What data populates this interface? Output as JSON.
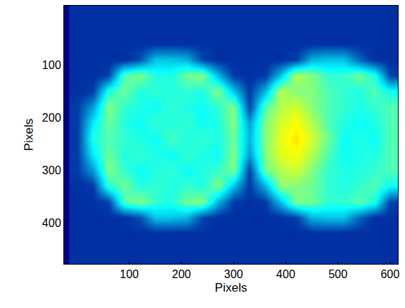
{
  "chart_data": {
    "type": "heatmap",
    "x_label": "Pixels",
    "y_label": "Pixels",
    "xlim": [
      -25,
      615
    ],
    "ylim": [
      478,
      -12
    ],
    "xticks": [
      100,
      200,
      300,
      400,
      500,
      600
    ],
    "yticks": [
      100,
      200,
      300,
      400
    ],
    "zlim": [
      0,
      1
    ],
    "x": [
      0,
      30,
      60,
      90,
      120,
      150,
      180,
      210,
      240,
      270,
      300,
      330,
      360,
      390,
      420,
      450,
      480,
      510,
      540,
      570,
      600
    ],
    "y": [
      0,
      30,
      60,
      90,
      120,
      150,
      180,
      210,
      240,
      270,
      300,
      330,
      360,
      390,
      420,
      450,
      480
    ],
    "cells": [
      [
        0.1,
        0.1,
        0.1,
        0.1,
        0.1,
        0.1,
        0.1,
        0.1,
        0.1,
        0.1,
        0.1,
        0.1,
        0.1,
        0.1,
        0.1,
        0.1,
        0.1,
        0.1,
        0.1,
        0.1,
        0.1
      ],
      [
        0.1,
        0.1,
        0.1,
        0.1,
        0.1,
        0.1,
        0.1,
        0.1,
        0.1,
        0.1,
        0.1,
        0.1,
        0.1,
        0.1,
        0.1,
        0.1,
        0.1,
        0.1,
        0.1,
        0.1,
        0.1
      ],
      [
        0.1,
        0.1,
        0.1,
        0.1,
        0.1,
        0.1,
        0.1,
        0.1,
        0.1,
        0.1,
        0.1,
        0.1,
        0.1,
        0.1,
        0.1,
        0.1,
        0.1,
        0.1,
        0.1,
        0.1,
        0.1
      ],
      [
        0.1,
        0.1,
        0.1,
        0.1,
        0.15,
        0.3,
        0.3,
        0.28,
        0.14,
        0.1,
        0.1,
        0.1,
        0.1,
        0.1,
        0.13,
        0.28,
        0.3,
        0.3,
        0.18,
        0.1,
        0.1
      ],
      [
        0.1,
        0.1,
        0.13,
        0.45,
        0.5,
        0.4,
        0.4,
        0.48,
        0.5,
        0.28,
        0.12,
        0.1,
        0.12,
        0.3,
        0.55,
        0.5,
        0.42,
        0.42,
        0.48,
        0.4,
        0.13
      ],
      [
        0.1,
        0.12,
        0.4,
        0.48,
        0.4,
        0.42,
        0.4,
        0.42,
        0.4,
        0.5,
        0.3,
        0.12,
        0.28,
        0.55,
        0.5,
        0.5,
        0.45,
        0.42,
        0.4,
        0.45,
        0.38
      ],
      [
        0.12,
        0.25,
        0.5,
        0.42,
        0.4,
        0.38,
        0.42,
        0.4,
        0.38,
        0.42,
        0.5,
        0.13,
        0.45,
        0.55,
        0.58,
        0.5,
        0.45,
        0.42,
        0.4,
        0.42,
        0.45
      ],
      [
        0.12,
        0.35,
        0.48,
        0.4,
        0.38,
        0.42,
        0.4,
        0.42,
        0.38,
        0.4,
        0.5,
        0.25,
        0.5,
        0.58,
        0.62,
        0.55,
        0.45,
        0.4,
        0.38,
        0.4,
        0.45
      ],
      [
        0.12,
        0.4,
        0.45,
        0.42,
        0.4,
        0.38,
        0.44,
        0.4,
        0.42,
        0.4,
        0.48,
        0.28,
        0.5,
        0.6,
        0.65,
        0.58,
        0.48,
        0.38,
        0.4,
        0.38,
        0.45
      ],
      [
        0.12,
        0.35,
        0.48,
        0.4,
        0.42,
        0.4,
        0.38,
        0.42,
        0.4,
        0.38,
        0.5,
        0.25,
        0.5,
        0.6,
        0.62,
        0.55,
        0.45,
        0.38,
        0.4,
        0.4,
        0.45
      ],
      [
        0.12,
        0.25,
        0.5,
        0.42,
        0.38,
        0.4,
        0.42,
        0.38,
        0.4,
        0.42,
        0.5,
        0.13,
        0.48,
        0.55,
        0.58,
        0.5,
        0.42,
        0.4,
        0.4,
        0.42,
        0.45
      ],
      [
        0.1,
        0.12,
        0.42,
        0.48,
        0.4,
        0.42,
        0.4,
        0.42,
        0.4,
        0.5,
        0.3,
        0.12,
        0.28,
        0.52,
        0.5,
        0.48,
        0.42,
        0.4,
        0.42,
        0.45,
        0.38
      ],
      [
        0.1,
        0.1,
        0.13,
        0.45,
        0.5,
        0.42,
        0.4,
        0.48,
        0.5,
        0.28,
        0.12,
        0.1,
        0.12,
        0.3,
        0.5,
        0.48,
        0.42,
        0.42,
        0.46,
        0.4,
        0.13
      ],
      [
        0.1,
        0.1,
        0.1,
        0.1,
        0.15,
        0.3,
        0.3,
        0.28,
        0.14,
        0.1,
        0.1,
        0.1,
        0.1,
        0.1,
        0.13,
        0.28,
        0.3,
        0.3,
        0.18,
        0.1,
        0.1
      ],
      [
        0.1,
        0.1,
        0.1,
        0.1,
        0.1,
        0.1,
        0.1,
        0.1,
        0.1,
        0.1,
        0.1,
        0.1,
        0.1,
        0.1,
        0.1,
        0.1,
        0.1,
        0.1,
        0.1,
        0.1,
        0.1
      ],
      [
        0.1,
        0.1,
        0.1,
        0.1,
        0.1,
        0.1,
        0.1,
        0.1,
        0.1,
        0.1,
        0.1,
        0.1,
        0.1,
        0.1,
        0.1,
        0.1,
        0.1,
        0.1,
        0.1,
        0.1,
        0.1
      ],
      [
        0.1,
        0.1,
        0.1,
        0.1,
        0.1,
        0.1,
        0.1,
        0.1,
        0.1,
        0.1,
        0.1,
        0.1,
        0.1,
        0.1,
        0.1,
        0.1,
        0.1,
        0.1,
        0.1,
        0.1,
        0.1
      ]
    ]
  }
}
